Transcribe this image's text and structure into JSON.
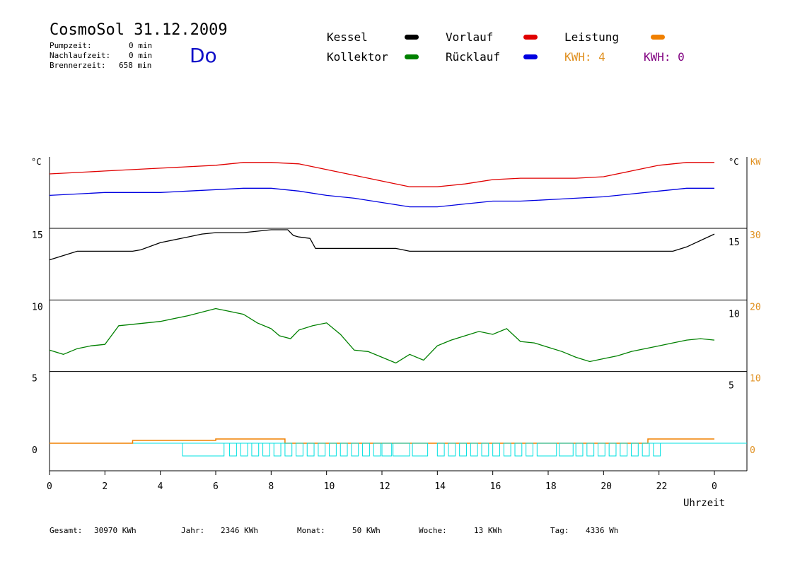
{
  "header": {
    "title": "CosmoSol 31.12.2009",
    "weekday": "Do",
    "stats": [
      {
        "label": "Pumpzeit:",
        "value": "0 min"
      },
      {
        "label": "Nachlaufzeit:",
        "value": "0 min"
      },
      {
        "label": "Brennerzeit:",
        "value": "658 min"
      }
    ]
  },
  "legend": {
    "kessel": "Kessel",
    "kollektor": "Kollektor",
    "vorlauf": "Vorlauf",
    "ruecklauf": "Rücklauf",
    "leistung": "Leistung",
    "kwh1": "KWH: 4",
    "kwh2": "KWH: 0"
  },
  "colors": {
    "kessel": "#000000",
    "kollektor": "#008000",
    "vorlauf": "#e00000",
    "ruecklauf": "#0000e0",
    "leistung": "#f08000",
    "kwh2": "#800080",
    "pump": "#00e0e0"
  },
  "units": {
    "left_top": "°C",
    "right_top_c": "°C",
    "right_top_kw": "KW"
  },
  "footer": {
    "gesamt_label": "Gesamt:",
    "gesamt_value": "30970 KWh",
    "jahr_label": "Jahr:",
    "jahr_value": "2346 KWh",
    "monat_label": "Monat:",
    "monat_value": "50 KWh",
    "woche_label": "Woche:",
    "woche_value": "13 KWh",
    "tag_label": "Tag:",
    "tag_value": "4336 Wh"
  },
  "chart_data": {
    "type": "line",
    "xlabel": "Uhrzeit",
    "x_ticks": [
      "0",
      "2",
      "4",
      "6",
      "8",
      "10",
      "12",
      "14",
      "16",
      "18",
      "20",
      "22",
      "0"
    ],
    "left_ticks": [
      "15",
      "10",
      "5",
      "0"
    ],
    "right_c_ticks": [
      "15",
      "10",
      "5"
    ],
    "right_kw_ticks": [
      "30",
      "20",
      "10",
      "0"
    ],
    "series": [
      {
        "name": "Vorlauf",
        "key": "vorlauf",
        "x": [
          0,
          1,
          2,
          3,
          4,
          5,
          6,
          7,
          8,
          9,
          10,
          11,
          12,
          13,
          14,
          15,
          16,
          17,
          18,
          19,
          20,
          21,
          22,
          23,
          24
        ],
        "y": [
          18.8,
          18.9,
          19.0,
          19.1,
          19.2,
          19.3,
          19.4,
          19.6,
          19.6,
          19.5,
          19.1,
          18.7,
          18.3,
          17.9,
          17.9,
          18.1,
          18.4,
          18.5,
          18.5,
          18.5,
          18.6,
          19.0,
          19.4,
          19.6,
          19.6
        ]
      },
      {
        "name": "Rücklauf",
        "key": "ruecklauf",
        "x": [
          0,
          1,
          2,
          3,
          4,
          5,
          6,
          7,
          8,
          9,
          10,
          11,
          12,
          13,
          14,
          15,
          16,
          17,
          18,
          19,
          20,
          21,
          22,
          23,
          24
        ],
        "y": [
          17.3,
          17.4,
          17.5,
          17.5,
          17.5,
          17.6,
          17.7,
          17.8,
          17.8,
          17.6,
          17.3,
          17.1,
          16.8,
          16.5,
          16.5,
          16.7,
          16.9,
          16.9,
          17.0,
          17.1,
          17.2,
          17.4,
          17.6,
          17.8,
          17.8
        ]
      },
      {
        "name": "Kessel",
        "key": "kessel",
        "x": [
          0,
          0.5,
          1,
          1.5,
          2,
          3,
          3.3,
          4,
          5,
          5.5,
          6,
          7,
          8,
          8.6,
          8.8,
          9,
          9.4,
          9.6,
          10,
          11,
          12,
          12.5,
          13,
          14,
          15,
          16,
          17,
          18,
          19,
          20,
          21,
          22,
          22.5,
          23,
          24
        ],
        "y": [
          12.8,
          13.1,
          13.4,
          13.4,
          13.4,
          13.4,
          13.5,
          14.0,
          14.4,
          14.6,
          14.7,
          14.7,
          14.9,
          14.9,
          14.5,
          14.4,
          14.3,
          13.6,
          13.6,
          13.6,
          13.6,
          13.6,
          13.4,
          13.4,
          13.4,
          13.4,
          13.4,
          13.4,
          13.4,
          13.4,
          13.4,
          13.4,
          13.4,
          13.7,
          14.6
        ]
      },
      {
        "name": "Kollektor",
        "key": "kollektor",
        "x": [
          0,
          0.5,
          1,
          1.5,
          2,
          2.5,
          3,
          4,
          5,
          6,
          6.5,
          7,
          7.5,
          8,
          8.3,
          8.7,
          9,
          9.5,
          10,
          10.5,
          11,
          11.5,
          12,
          12.5,
          13,
          13.5,
          14,
          14.5,
          15,
          15.5,
          16,
          16.5,
          17,
          17.5,
          18,
          18.5,
          19,
          19.5,
          20,
          20.5,
          21,
          21.5,
          22,
          22.5,
          23,
          23.5,
          24
        ],
        "y": [
          6.5,
          6.2,
          6.6,
          6.8,
          6.9,
          8.2,
          8.3,
          8.5,
          8.9,
          9.4,
          9.2,
          9.0,
          8.4,
          8.0,
          7.5,
          7.3,
          7.9,
          8.2,
          8.4,
          7.6,
          6.5,
          6.4,
          6.0,
          5.6,
          6.2,
          5.8,
          6.8,
          7.2,
          7.5,
          7.8,
          7.6,
          8.0,
          7.1,
          7.0,
          6.7,
          6.4,
          6.0,
          5.7,
          5.9,
          6.1,
          6.4,
          6.6,
          6.8,
          7.0,
          7.2,
          7.3,
          7.2
        ]
      },
      {
        "name": "Leistung",
        "key": "leistung",
        "x": [
          0,
          3,
          3,
          6,
          6,
          8.5,
          8.5,
          21.6,
          21.6,
          24
        ],
        "y": [
          0,
          0,
          0.2,
          0.2,
          0.3,
          0.3,
          0,
          0,
          0.3,
          0.3
        ]
      }
    ],
    "pump_blocks": [
      [
        4.8,
        6.3
      ],
      [
        6.5,
        6.75
      ],
      [
        6.9,
        7.15
      ],
      [
        7.3,
        7.55
      ],
      [
        7.7,
        7.95
      ],
      [
        8.1,
        8.35
      ],
      [
        8.5,
        8.75
      ],
      [
        8.9,
        9.15
      ],
      [
        9.3,
        9.55
      ],
      [
        9.7,
        9.95
      ],
      [
        10.1,
        10.35
      ],
      [
        10.5,
        10.75
      ],
      [
        10.9,
        11.15
      ],
      [
        11.3,
        11.55
      ],
      [
        11.7,
        11.95
      ],
      [
        12.0,
        12.35
      ],
      [
        12.4,
        13.0
      ],
      [
        13.1,
        13.65
      ],
      [
        14.0,
        14.25
      ],
      [
        14.4,
        14.65
      ],
      [
        14.8,
        15.05
      ],
      [
        15.2,
        15.45
      ],
      [
        15.6,
        15.85
      ],
      [
        16.0,
        16.25
      ],
      [
        16.4,
        16.65
      ],
      [
        16.8,
        17.05
      ],
      [
        17.2,
        17.45
      ],
      [
        17.6,
        18.3
      ],
      [
        18.4,
        18.9
      ],
      [
        19.0,
        19.25
      ],
      [
        19.4,
        19.65
      ],
      [
        19.8,
        20.05
      ],
      [
        20.2,
        20.45
      ],
      [
        20.6,
        20.85
      ],
      [
        21.0,
        21.25
      ],
      [
        21.4,
        21.65
      ],
      [
        21.8,
        22.05
      ]
    ],
    "xlim": [
      0,
      24
    ],
    "grid": true
  }
}
